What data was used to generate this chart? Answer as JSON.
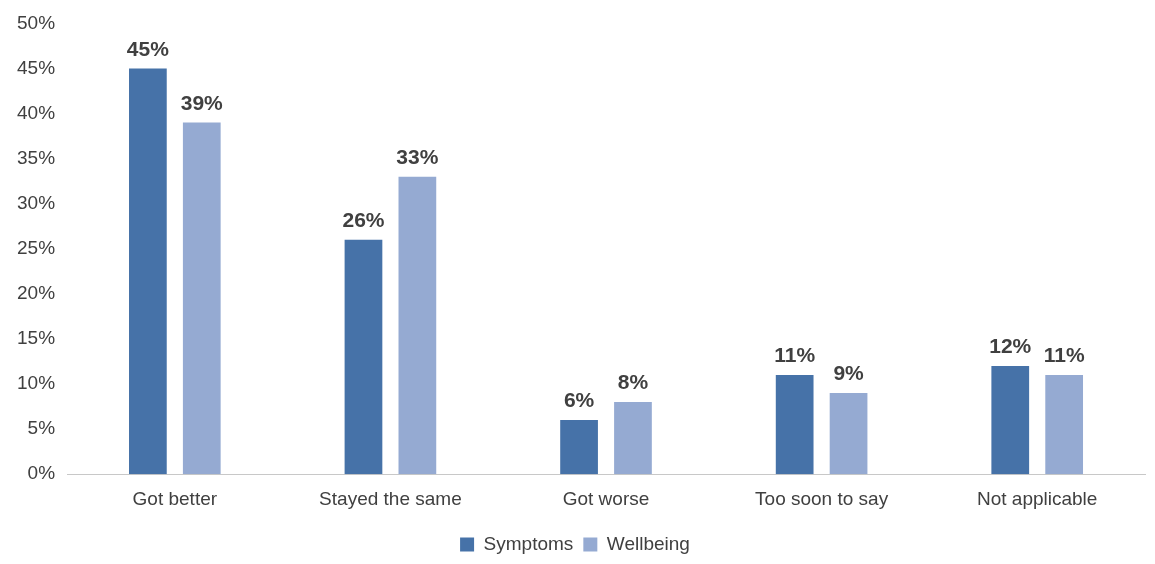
{
  "chart_data": {
    "type": "bar",
    "categories": [
      "Got better",
      "Stayed the same",
      "Got worse",
      "Too soon to say",
      "Not applicable"
    ],
    "series": [
      {
        "name": "Symptoms",
        "color": "#4672a8",
        "values": [
          45,
          26,
          6,
          11,
          12
        ],
        "value_labels": [
          "45%",
          "26%",
          "6%",
          "11%",
          "12%"
        ]
      },
      {
        "name": "Wellbeing",
        "color": "#95aad2",
        "values": [
          39,
          33,
          8,
          9,
          11
        ],
        "value_labels": [
          "39%",
          "33%",
          "8%",
          "9%",
          "11%"
        ]
      }
    ],
    "ylim": [
      0,
      50
    ],
    "yticks": [
      {
        "value": 0,
        "label": "0%"
      },
      {
        "value": 5,
        "label": "5%"
      },
      {
        "value": 10,
        "label": "10%"
      },
      {
        "value": 15,
        "label": "15%"
      },
      {
        "value": 20,
        "label": "20%"
      },
      {
        "value": 25,
        "label": "25%"
      },
      {
        "value": 30,
        "label": "30%"
      },
      {
        "value": 35,
        "label": "35%"
      },
      {
        "value": 40,
        "label": "40%"
      },
      {
        "value": 45,
        "label": "45%"
      },
      {
        "value": 50,
        "label": "50%"
      }
    ],
    "grid": false,
    "legend": "bottom"
  }
}
